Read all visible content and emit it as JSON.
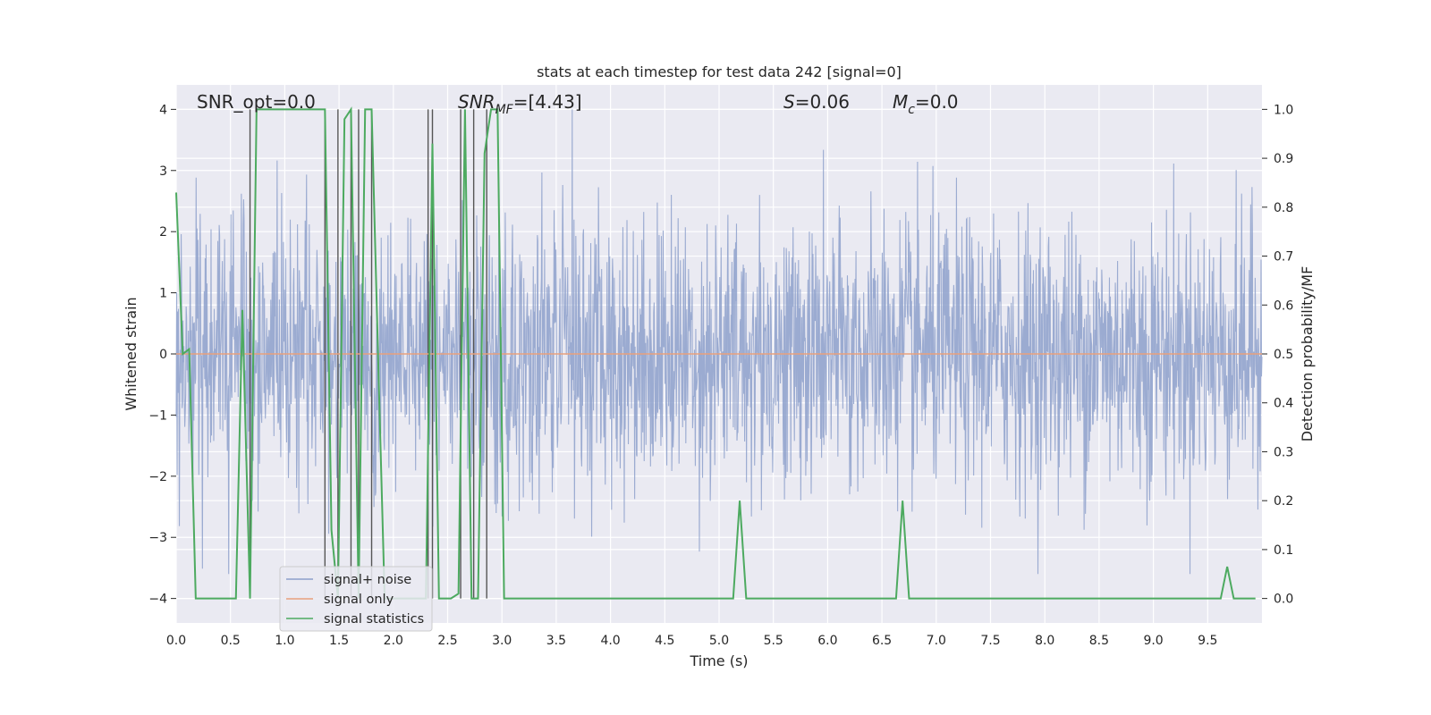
{
  "chart_data": {
    "type": "line",
    "title": "stats at each timestep for test data 242 [signal=0]",
    "xlabel": "Time (s)",
    "ylabel": "Whitened strain",
    "ylabel_right": "Detection probability/MF",
    "xlim": [
      0.0,
      10.0
    ],
    "ylim": [
      -4.4,
      4.4
    ],
    "ylim_right": [
      -0.05,
      1.05
    ],
    "x_ticks": [
      "0.0",
      "0.5",
      "1.0",
      "1.5",
      "2.0",
      "2.5",
      "3.0",
      "3.5",
      "4.0",
      "4.5",
      "5.0",
      "5.5",
      "6.0",
      "6.5",
      "7.0",
      "7.5",
      "8.0",
      "8.5",
      "9.0",
      "9.5"
    ],
    "y_ticks": [
      "4",
      "3",
      "2",
      "1",
      "0",
      "−1",
      "−2",
      "−3",
      "−4"
    ],
    "y_ticks_right": [
      "1.0",
      "0.9",
      "0.8",
      "0.7",
      "0.6",
      "0.5",
      "0.4",
      "0.3",
      "0.2",
      "0.1",
      "0.0"
    ],
    "grid": true,
    "annotations": {
      "snr_opt": "SNR_opt=0.0",
      "snr_mf_base": "SNR",
      "snr_mf_sub": "MF",
      "snr_mf_value": "=[4.43]",
      "s_sym": "S",
      "s_value": "=0.06",
      "mc_base": "M",
      "mc_sub": "c",
      "mc_value": "=0.0"
    },
    "legend": {
      "placement": "lower-left",
      "entries": [
        "signal+ noise",
        "signal only",
        "signal statistics"
      ]
    },
    "colors": {
      "noise": "#8da0cb",
      "signal": "#e8a07c",
      "statistics": "#4daa60",
      "events": "#555555",
      "background": "#eaeaf2",
      "grid": "#ffffff"
    },
    "series": [
      {
        "name": "signal+ noise",
        "description_range": [
          -3.6,
          4.0
        ]
      },
      {
        "name": "signal only",
        "x": [
          0.0,
          10.0
        ],
        "y": [
          0.0,
          0.0
        ]
      },
      {
        "name": "signal statistics",
        "axis": "right",
        "x": [
          0.0,
          0.06,
          0.12,
          0.18,
          0.55,
          0.61,
          0.68,
          0.74,
          1.37,
          1.43,
          1.49,
          1.55,
          1.61,
          1.68,
          1.74,
          1.8,
          1.86,
          1.92,
          2.3,
          2.36,
          2.42,
          2.53,
          2.6,
          2.66,
          2.72,
          2.78,
          2.84,
          2.9,
          2.96,
          3.02,
          3.08,
          5.13,
          5.19,
          5.25,
          6.63,
          6.69,
          6.75,
          9.62,
          9.68,
          9.74,
          9.94
        ],
        "y": [
          0.83,
          0.5,
          0.51,
          0.0,
          0.0,
          0.59,
          0.0,
          1.0,
          1.0,
          0.14,
          0.0,
          0.98,
          1.0,
          0.0,
          1.0,
          1.0,
          0.49,
          0.0,
          0.0,
          0.93,
          0.0,
          0.0,
          0.01,
          1.0,
          0.0,
          0.0,
          0.91,
          1.0,
          1.0,
          0.0,
          0.0,
          0.0,
          0.2,
          0.0,
          0.0,
          0.2,
          0.0,
          0.0,
          0.065,
          0.0,
          0.0
        ]
      }
    ],
    "events_x": [
      0.68,
      1.37,
      1.49,
      1.61,
      1.68,
      1.8,
      2.32,
      2.36,
      2.62,
      2.74,
      2.86
    ]
  }
}
